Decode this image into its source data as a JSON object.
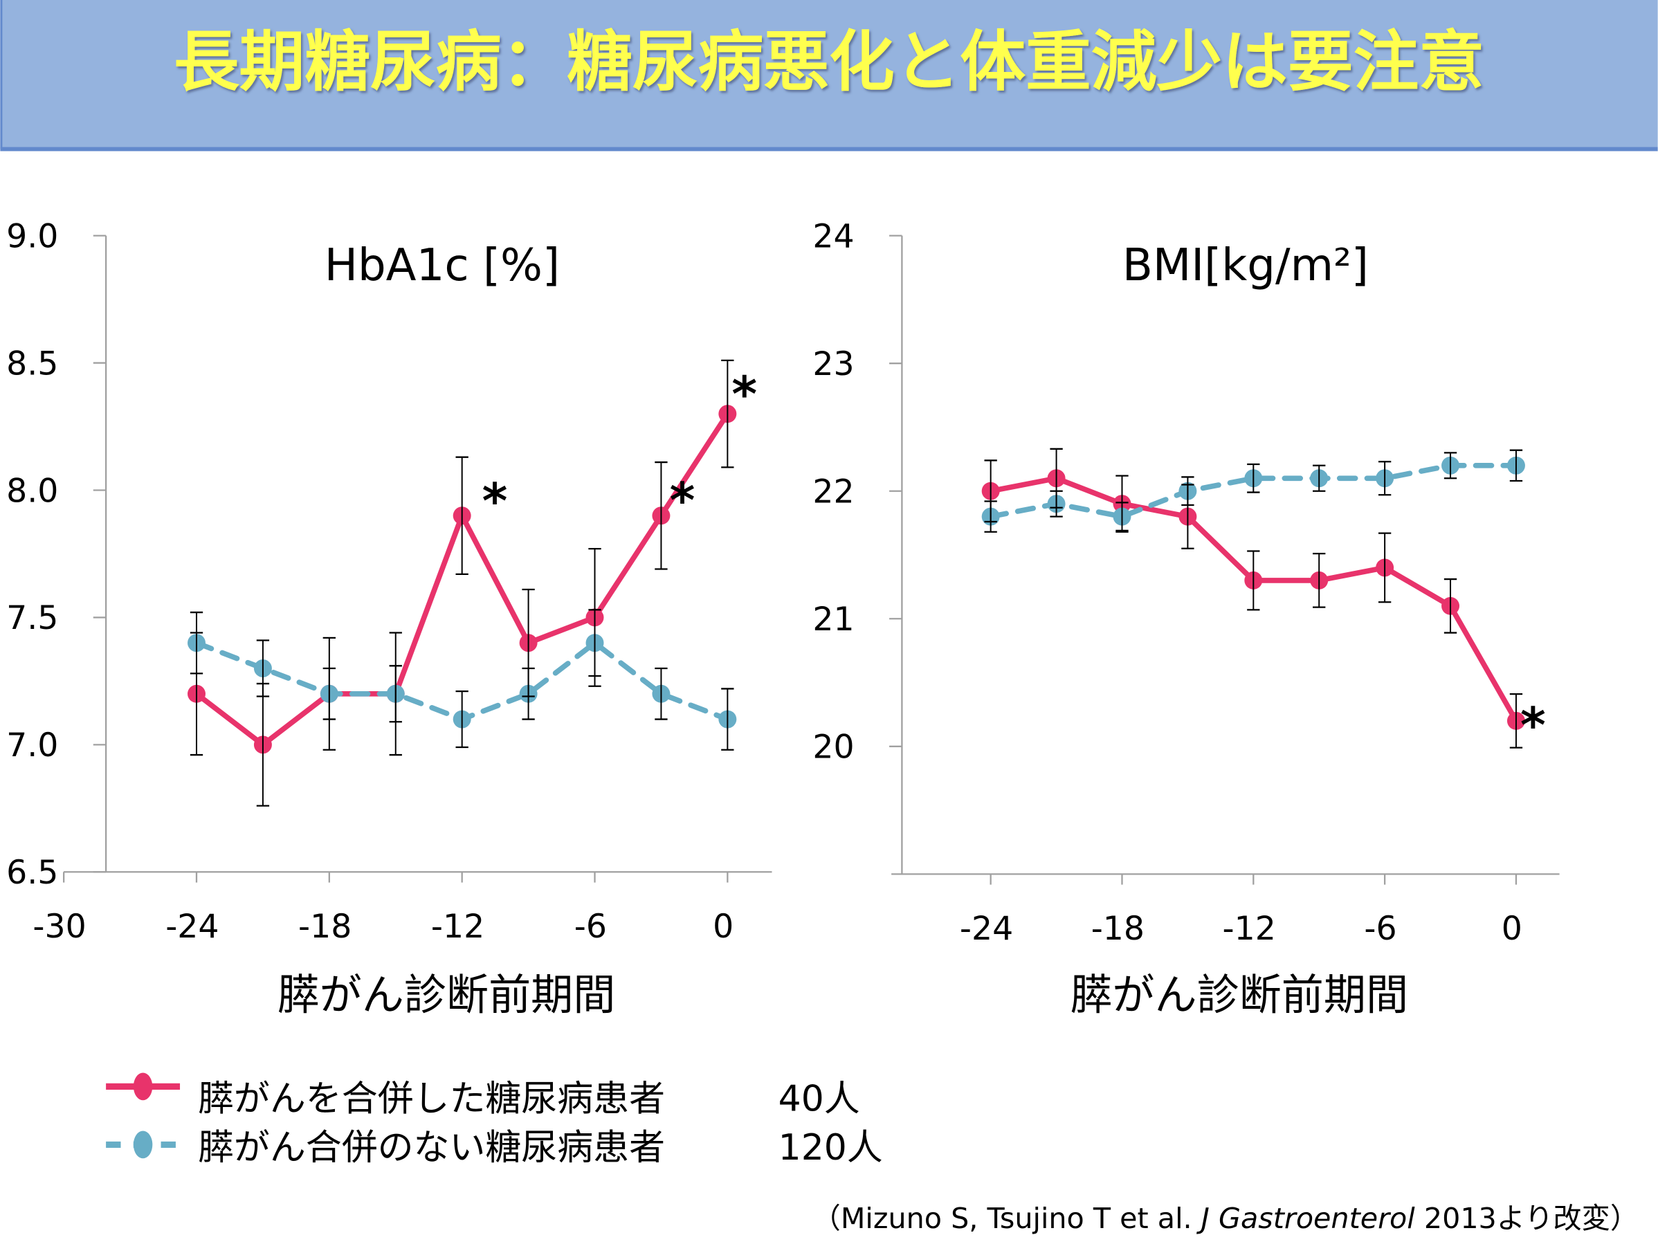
{
  "header": {
    "title": "長期糖尿病：糖尿病悪化と体重減少は要注意",
    "background": "#95b3de",
    "border": "#6289cc",
    "title_color": "#ffff4d"
  },
  "colors": {
    "pancreatic_cancer": "#e8336b",
    "no_pancreatic_cancer": "#67adc6",
    "error_bar": "#000000",
    "axis": "#a0a0a0"
  },
  "chart_data": [
    {
      "type": "line",
      "title": "HbA1c [%]",
      "xlabel": "膵がん診断前期間",
      "ylabel": "",
      "xlim": [
        -30,
        0
      ],
      "ylim": [
        6.5,
        9.0
      ],
      "x_ticks": [
        "-30",
        "-24",
        "-18",
        "-12",
        "-6",
        "0"
      ],
      "y_ticks": [
        "9.0",
        "8.5",
        "8.0",
        "7.5",
        "7.0",
        "6.5"
      ],
      "x": [
        -24,
        -21,
        -18,
        -15,
        -12,
        -9,
        -6,
        -3,
        0
      ],
      "grid": false,
      "series": [
        {
          "name": "膵がんを合併した糖尿病患者",
          "style": "solid",
          "values": [
            7.2,
            7.0,
            7.2,
            7.2,
            7.9,
            7.4,
            7.5,
            7.9,
            8.3
          ],
          "error": [
            0.24,
            0.24,
            0.22,
            0.24,
            0.23,
            0.21,
            0.27,
            0.21,
            0.21
          ]
        },
        {
          "name": "膵がん合併のない糖尿病患者",
          "style": "dashed",
          "values": [
            7.4,
            7.3,
            7.2,
            7.2,
            7.1,
            7.2,
            7.4,
            7.2,
            7.1
          ],
          "error": [
            0.12,
            0.11,
            0.1,
            0.11,
            0.11,
            0.1,
            0.13,
            0.1,
            0.12
          ]
        }
      ],
      "annotations": [
        {
          "text": "*",
          "x": -12
        },
        {
          "text": "*",
          "x": -3
        },
        {
          "text": "*",
          "x": 0
        }
      ]
    },
    {
      "type": "line",
      "title": "BMI[kg/m²]",
      "xlabel": "膵がん診断前期間",
      "ylabel": "",
      "xlim": [
        -27,
        1.5
      ],
      "ylim": [
        19,
        24
      ],
      "x_ticks": [
        "-24",
        "-18",
        "-12",
        "-6",
        "0"
      ],
      "y_ticks": [
        "24",
        "23",
        "22",
        "21",
        "20"
      ],
      "x": [
        -24,
        -21,
        -18,
        -15,
        -12,
        -9,
        -6,
        -3,
        0
      ],
      "grid": false,
      "series": [
        {
          "name": "膵がんを合併した糖尿病患者",
          "style": "solid",
          "values": [
            22.0,
            22.1,
            21.9,
            21.8,
            21.3,
            21.3,
            21.4,
            21.1,
            20.2
          ],
          "error": [
            0.24,
            0.23,
            0.22,
            0.25,
            0.23,
            0.21,
            0.27,
            0.21,
            0.21
          ]
        },
        {
          "name": "膵がん合併のない糖尿病患者",
          "style": "dashed",
          "values": [
            21.8,
            21.9,
            21.8,
            22.0,
            22.1,
            22.1,
            22.1,
            22.2,
            22.2
          ],
          "error": [
            0.12,
            0.1,
            0.11,
            0.11,
            0.11,
            0.1,
            0.13,
            0.1,
            0.12
          ]
        }
      ],
      "annotations": [
        {
          "text": "*",
          "x": 0
        }
      ]
    }
  ],
  "legend": {
    "items": [
      {
        "label": "膵がんを合併した糖尿病患者",
        "count": "40人"
      },
      {
        "label": "膵がん合併のない糖尿病患者",
        "count": "120人"
      }
    ]
  },
  "citation": {
    "open": "（Mizuno S, Tsujino T et al. ",
    "journal": "J Gastroenterol",
    "close": " 2013より改変）"
  }
}
